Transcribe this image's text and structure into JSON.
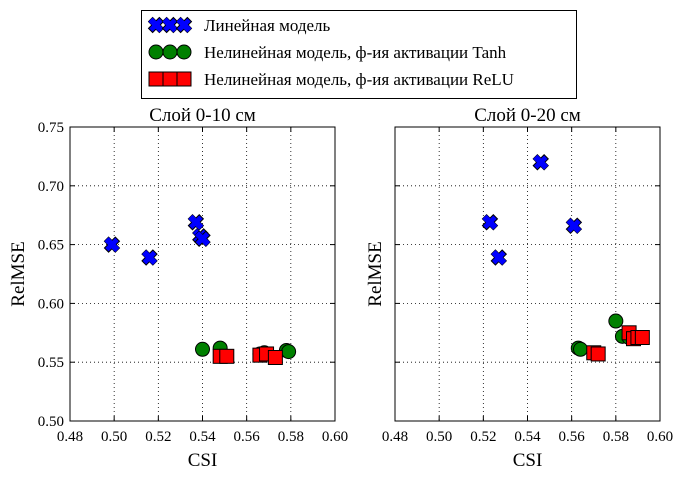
{
  "legend": {
    "entries": [
      {
        "label": "Линейная модель",
        "marker": "x-icon",
        "color": "#0000ff"
      },
      {
        "label": "Нелинейная модель, ф-ия активации Tanh",
        "marker": "circle-icon",
        "color": "#008000"
      },
      {
        "label": "Нелинейная модель, ф-ия активации ReLU",
        "marker": "square-icon",
        "color": "#ff0000"
      }
    ]
  },
  "chart_data": [
    {
      "type": "scatter",
      "title": "Слой 0-10 см",
      "xlabel": "CSI",
      "ylabel": "RelMSE",
      "xlim": [
        0.48,
        0.6
      ],
      "ylim": [
        0.5,
        0.75
      ],
      "xticks": [
        "0.48",
        "0.50",
        "0.52",
        "0.54",
        "0.56",
        "0.58",
        "0.60"
      ],
      "yticks": [
        "0.50",
        "0.55",
        "0.60",
        "0.65",
        "0.70",
        "0.75"
      ],
      "grid": true,
      "series": [
        {
          "name": "Линейная модель",
          "marker": "x",
          "color": "#0000ff",
          "points": [
            [
              0.499,
              0.65
            ],
            [
              0.516,
              0.639
            ],
            [
              0.537,
              0.669
            ],
            [
              0.539,
              0.657
            ],
            [
              0.54,
              0.655
            ]
          ]
        },
        {
          "name": "Нелинейная модель, ф-ия активации Tanh",
          "marker": "circle",
          "color": "#008000",
          "points": [
            [
              0.54,
              0.561
            ],
            [
              0.548,
              0.562
            ],
            [
              0.566,
              0.557
            ],
            [
              0.568,
              0.558
            ],
            [
              0.578,
              0.56
            ],
            [
              0.579,
              0.559
            ]
          ]
        },
        {
          "name": "Нелинейная модель, ф-ия активации ReLU",
          "marker": "square",
          "color": "#ff0000",
          "points": [
            [
              0.548,
              0.555
            ],
            [
              0.551,
              0.555
            ],
            [
              0.566,
              0.556
            ],
            [
              0.569,
              0.557
            ],
            [
              0.573,
              0.554
            ]
          ]
        }
      ]
    },
    {
      "type": "scatter",
      "title": "Слой 0-20 см",
      "xlabel": "CSI",
      "ylabel": "RelMSE",
      "xlim": [
        0.48,
        0.6
      ],
      "ylim": [
        0.5,
        0.75
      ],
      "xticks": [
        "0.48",
        "0.50",
        "0.52",
        "0.54",
        "0.56",
        "0.58",
        "0.60"
      ],
      "yticks": [],
      "grid": true,
      "series": [
        {
          "name": "Линейная модель",
          "marker": "x",
          "color": "#0000ff",
          "points": [
            [
              0.546,
              0.72
            ],
            [
              0.523,
              0.669
            ],
            [
              0.527,
              0.639
            ],
            [
              0.561,
              0.666
            ]
          ]
        },
        {
          "name": "Нелинейная модель, ф-ия активации Tanh",
          "marker": "circle",
          "color": "#008000",
          "points": [
            [
              0.563,
              0.562
            ],
            [
              0.564,
              0.561
            ],
            [
              0.58,
              0.585
            ],
            [
              0.583,
              0.572
            ],
            [
              0.586,
              0.571
            ]
          ]
        },
        {
          "name": "Нелинейная модель, ф-ия активации ReLU",
          "marker": "square",
          "color": "#ff0000",
          "points": [
            [
              0.57,
              0.558
            ],
            [
              0.572,
              0.557
            ],
            [
              0.586,
              0.575
            ],
            [
              0.588,
              0.57
            ],
            [
              0.59,
              0.571
            ],
            [
              0.592,
              0.571
            ]
          ]
        }
      ]
    }
  ]
}
